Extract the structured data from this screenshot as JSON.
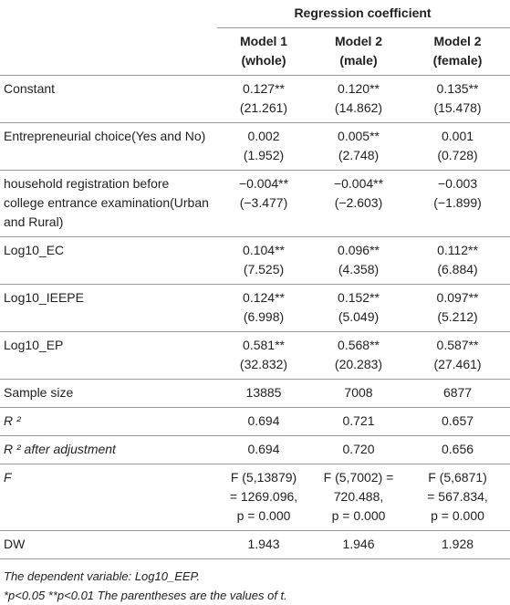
{
  "table": {
    "group_header": "Regression coefficient",
    "columns": [
      [
        "Model 1",
        "(whole)"
      ],
      [
        "Model 2",
        "(male)"
      ],
      [
        "Model 2",
        "(female)"
      ]
    ],
    "rows": [
      {
        "label": "Constant",
        "cells": [
          [
            "0.127**",
            "(21.261)"
          ],
          [
            "0.120**",
            "(14.862)"
          ],
          [
            "0.135**",
            "(15.478)"
          ]
        ]
      },
      {
        "label": "Entrepreneurial choice(Yes and No)",
        "cells": [
          [
            "0.002",
            "(1.952)"
          ],
          [
            "0.005**",
            "(2.748)"
          ],
          [
            "0.001",
            "(0.728)"
          ]
        ]
      },
      {
        "label": "household registration before college entrance examination(Urban and Rural)",
        "cells": [
          [
            "−0.004**",
            "(−3.477)"
          ],
          [
            "−0.004**",
            "(−2.603)"
          ],
          [
            "−0.003",
            "(−1.899)"
          ]
        ]
      },
      {
        "label": "Log10_EC",
        "cells": [
          [
            "0.104**",
            "(7.525)"
          ],
          [
            "0.096**",
            "(4.358)"
          ],
          [
            "0.112**",
            "(6.884)"
          ]
        ]
      },
      {
        "label": "Log10_IEEPE",
        "cells": [
          [
            "0.124**",
            "(6.998)"
          ],
          [
            "0.152**",
            "(5.049)"
          ],
          [
            "0.097**",
            "(5.212)"
          ]
        ]
      },
      {
        "label": "Log10_EP",
        "cells": [
          [
            "0.581**",
            "(32.832)"
          ],
          [
            "0.568**",
            "(20.283)"
          ],
          [
            "0.587**",
            "(27.461)"
          ]
        ]
      },
      {
        "label": "Sample size",
        "cells": [
          [
            "13885"
          ],
          [
            "7008"
          ],
          [
            "6877"
          ]
        ]
      },
      {
        "label": "R ²",
        "cells": [
          [
            "0.694"
          ],
          [
            "0.721"
          ],
          [
            "0.657"
          ]
        ]
      },
      {
        "label": "R ² after adjustment",
        "cells": [
          [
            "0.694"
          ],
          [
            "0.720"
          ],
          [
            "0.656"
          ]
        ]
      },
      {
        "label": "F",
        "cells": [
          [
            "F (5,13879)",
            "= 1269.096,",
            "p = 0.000"
          ],
          [
            "F (5,7002) =",
            "720.488,",
            "p = 0.000"
          ],
          [
            "F (5,6871)",
            "= 567.834,",
            "p = 0.000"
          ]
        ]
      },
      {
        "label": "DW",
        "cells": [
          [
            "1.943"
          ],
          [
            "1.946"
          ],
          [
            "1.928"
          ]
        ]
      }
    ]
  },
  "notes": [
    "The dependent variable: Log10_EEP.",
    "*p<0.05 **p<0.01 The parentheses are the values of t."
  ]
}
